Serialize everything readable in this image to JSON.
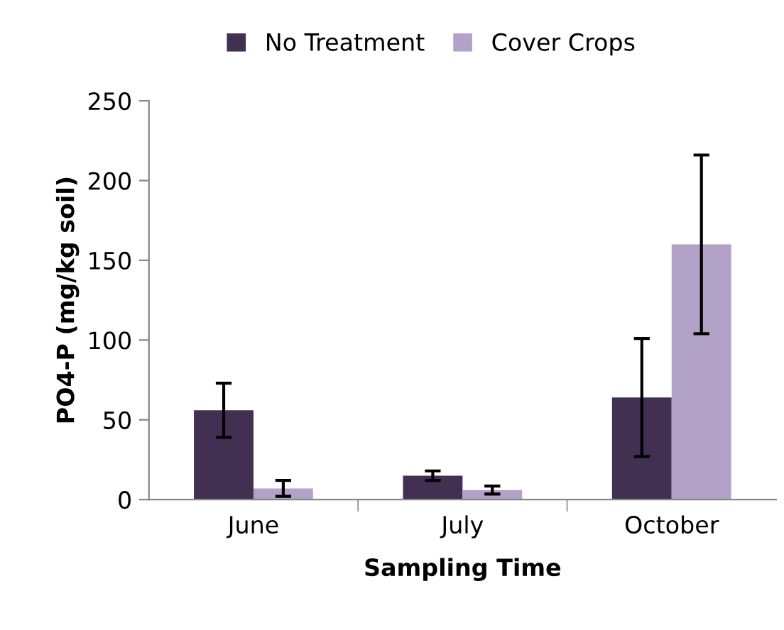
{
  "chart_data": {
    "type": "bar",
    "xlabel": "Sampling Time",
    "ylabel": "PO4-P (mg/kg soil)",
    "categories": [
      "June",
      "July",
      "October"
    ],
    "series": [
      {
        "name": "No Treatment",
        "color": "#413052",
        "values": [
          56,
          15,
          64
        ],
        "errors": [
          17,
          3,
          37
        ]
      },
      {
        "name": "Cover Crops",
        "color": "#b3a2c7",
        "values": [
          7,
          6,
          160
        ],
        "errors": [
          5,
          2.5,
          56
        ]
      }
    ],
    "ylim": [
      0,
      250
    ],
    "yticks": [
      0,
      50,
      100,
      150,
      200,
      250
    ],
    "grid": false,
    "legend": "top"
  }
}
